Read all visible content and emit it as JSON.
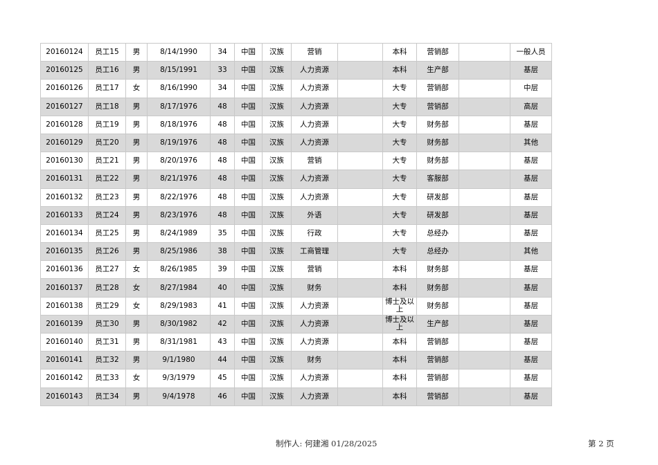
{
  "rows": [
    [
      "20160124",
      "员工15",
      "男",
      "8/14/1990",
      "34",
      "中国",
      "汉族",
      "营销",
      "",
      "本科",
      "营销部",
      "",
      "一般人员"
    ],
    [
      "20160125",
      "员工16",
      "男",
      "8/15/1991",
      "33",
      "中国",
      "汉族",
      "人力资源",
      "",
      "本科",
      "生产部",
      "",
      "基层"
    ],
    [
      "20160126",
      "员工17",
      "女",
      "8/16/1990",
      "34",
      "中国",
      "汉族",
      "人力资源",
      "",
      "大专",
      "营销部",
      "",
      "中层"
    ],
    [
      "20160127",
      "员工18",
      "男",
      "8/17/1976",
      "48",
      "中国",
      "汉族",
      "人力资源",
      "",
      "大专",
      "营销部",
      "",
      "高层"
    ],
    [
      "20160128",
      "员工19",
      "男",
      "8/18/1976",
      "48",
      "中国",
      "汉族",
      "人力资源",
      "",
      "大专",
      "财务部",
      "",
      "基层"
    ],
    [
      "20160129",
      "员工20",
      "男",
      "8/19/1976",
      "48",
      "中国",
      "汉族",
      "人力资源",
      "",
      "大专",
      "财务部",
      "",
      "其他"
    ],
    [
      "20160130",
      "员工21",
      "男",
      "8/20/1976",
      "48",
      "中国",
      "汉族",
      "营销",
      "",
      "大专",
      "财务部",
      "",
      "基层"
    ],
    [
      "20160131",
      "员工22",
      "男",
      "8/21/1976",
      "48",
      "中国",
      "汉族",
      "人力资源",
      "",
      "大专",
      "客服部",
      "",
      "基层"
    ],
    [
      "20160132",
      "员工23",
      "男",
      "8/22/1976",
      "48",
      "中国",
      "汉族",
      "人力资源",
      "",
      "大专",
      "研发部",
      "",
      "基层"
    ],
    [
      "20160133",
      "员工24",
      "男",
      "8/23/1976",
      "48",
      "中国",
      "汉族",
      "外语",
      "",
      "大专",
      "研发部",
      "",
      "基层"
    ],
    [
      "20160134",
      "员工25",
      "男",
      "8/24/1989",
      "35",
      "中国",
      "汉族",
      "行政",
      "",
      "大专",
      "总经办",
      "",
      "基层"
    ],
    [
      "20160135",
      "员工26",
      "男",
      "8/25/1986",
      "38",
      "中国",
      "汉族",
      "工商管理",
      "",
      "大专",
      "总经办",
      "",
      "其他"
    ],
    [
      "20160136",
      "员工27",
      "女",
      "8/26/1985",
      "39",
      "中国",
      "汉族",
      "营销",
      "",
      "本科",
      "财务部",
      "",
      "基层"
    ],
    [
      "20160137",
      "员工28",
      "女",
      "8/27/1984",
      "40",
      "中国",
      "汉族",
      "财务",
      "",
      "本科",
      "财务部",
      "",
      "基层"
    ],
    [
      "20160138",
      "员工29",
      "女",
      "8/29/1983",
      "41",
      "中国",
      "汉族",
      "人力资源",
      "",
      "博士及以上",
      "财务部",
      "",
      "基层"
    ],
    [
      "20160139",
      "员工30",
      "男",
      "8/30/1982",
      "42",
      "中国",
      "汉族",
      "人力资源",
      "",
      "博士及以上",
      "生产部",
      "",
      "基层"
    ],
    [
      "20160140",
      "员工31",
      "男",
      "8/31/1981",
      "43",
      "中国",
      "汉族",
      "人力资源",
      "",
      "本科",
      "营销部",
      "",
      "基层"
    ],
    [
      "20160141",
      "员工32",
      "男",
      "9/1/1980",
      "44",
      "中国",
      "汉族",
      "财务",
      "",
      "本科",
      "营销部",
      "",
      "基层"
    ],
    [
      "20160142",
      "员工33",
      "女",
      "9/3/1979",
      "45",
      "中国",
      "汉族",
      "人力资源",
      "",
      "本科",
      "营销部",
      "",
      "基层"
    ],
    [
      "20160143",
      "员工34",
      "男",
      "9/4/1978",
      "46",
      "中国",
      "汉族",
      "人力资源",
      "",
      "本科",
      "营销部",
      "",
      "基层"
    ]
  ],
  "footer": {
    "author": "制作人: 何建湘 01/28/2025",
    "page": "第 2 页"
  },
  "colors": {
    "alt_row": "#d9d9d9",
    "border": "#c8c8c8"
  }
}
